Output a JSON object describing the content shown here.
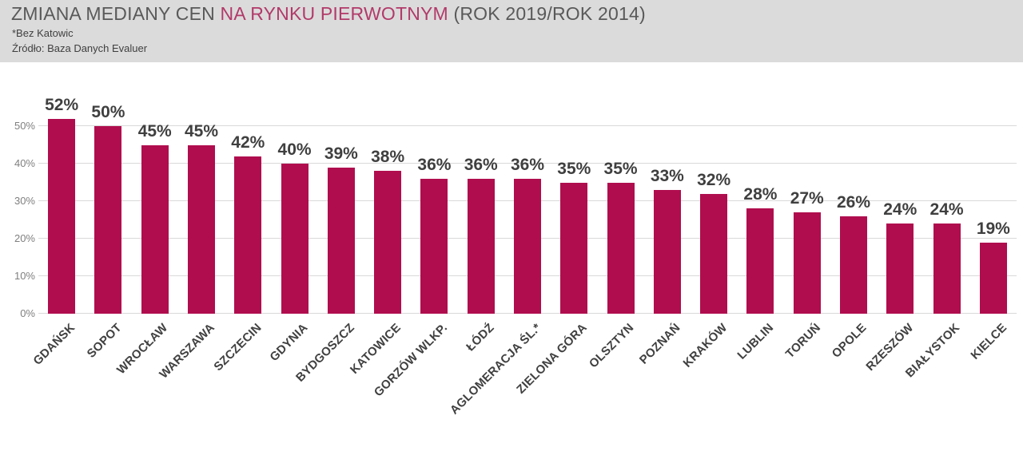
{
  "header": {
    "title_main": "ZMIANA MEDIANY CEN ",
    "title_accent": "NA RYNKU PIERWOTNYM",
    "title_suffix": " (ROK 2019/ROK 2014)",
    "note": "*Bez Katowic",
    "source": "Źródło: Baza Danych Evaluer"
  },
  "colors": {
    "header_bg": "#DCDBDB",
    "bar": "#B00D4E",
    "title_text": "#595959",
    "title_accent": "#B13A69",
    "subtitle_text": "#3F3F3F",
    "grid": "#D9D9D9",
    "y_tick_text": "#7F7F7F",
    "value_label_text": "#3F3F3F",
    "category_label_text": "#404040"
  },
  "chart_data": {
    "type": "bar",
    "title": "ZMIANA MEDIANY CEN NA RYNKU PIERWOTNYM (ROK 2019/ROK 2014)",
    "note": "*Bez Katowic",
    "source": "Źródło: Baza Danych Evaluer",
    "categories": [
      "GDAŃSK",
      "SOPOT",
      "WROCŁAW",
      "WARSZAWA",
      "SZCZECIN",
      "GDYNIA",
      "BYDGOSZCZ",
      "KATOWICE",
      "GORZÓW WLKP.",
      "ŁÓDŹ",
      "AGLOMERACJA ŚL.*",
      "ZIELONA GÓRA",
      "OLSZTYN",
      "POZNAŃ",
      "KRAKÓW",
      "LUBLIN",
      "TORUŃ",
      "OPOLE",
      "RZESZÓW",
      "BIAŁYSTOK",
      "KIELCE"
    ],
    "values": [
      52,
      50,
      45,
      45,
      42,
      40,
      39,
      38,
      36,
      36,
      36,
      35,
      35,
      33,
      32,
      28,
      27,
      26,
      24,
      24,
      19
    ],
    "value_labels": [
      "52%",
      "50%",
      "45%",
      "45%",
      "42%",
      "40%",
      "39%",
      "38%",
      "36%",
      "36%",
      "36%",
      "35%",
      "35%",
      "33%",
      "32%",
      "28%",
      "27%",
      "26%",
      "24%",
      "24%",
      "19%"
    ],
    "xlabel": "",
    "ylabel": "",
    "y_ticks": [
      "0%",
      "10%",
      "20%",
      "30%",
      "40%",
      "50%"
    ],
    "y_tick_values": [
      0,
      10,
      20,
      30,
      40,
      50
    ],
    "ylim": [
      0,
      55
    ],
    "grid": true,
    "legend": false,
    "category_label_rotation_deg": -45
  }
}
